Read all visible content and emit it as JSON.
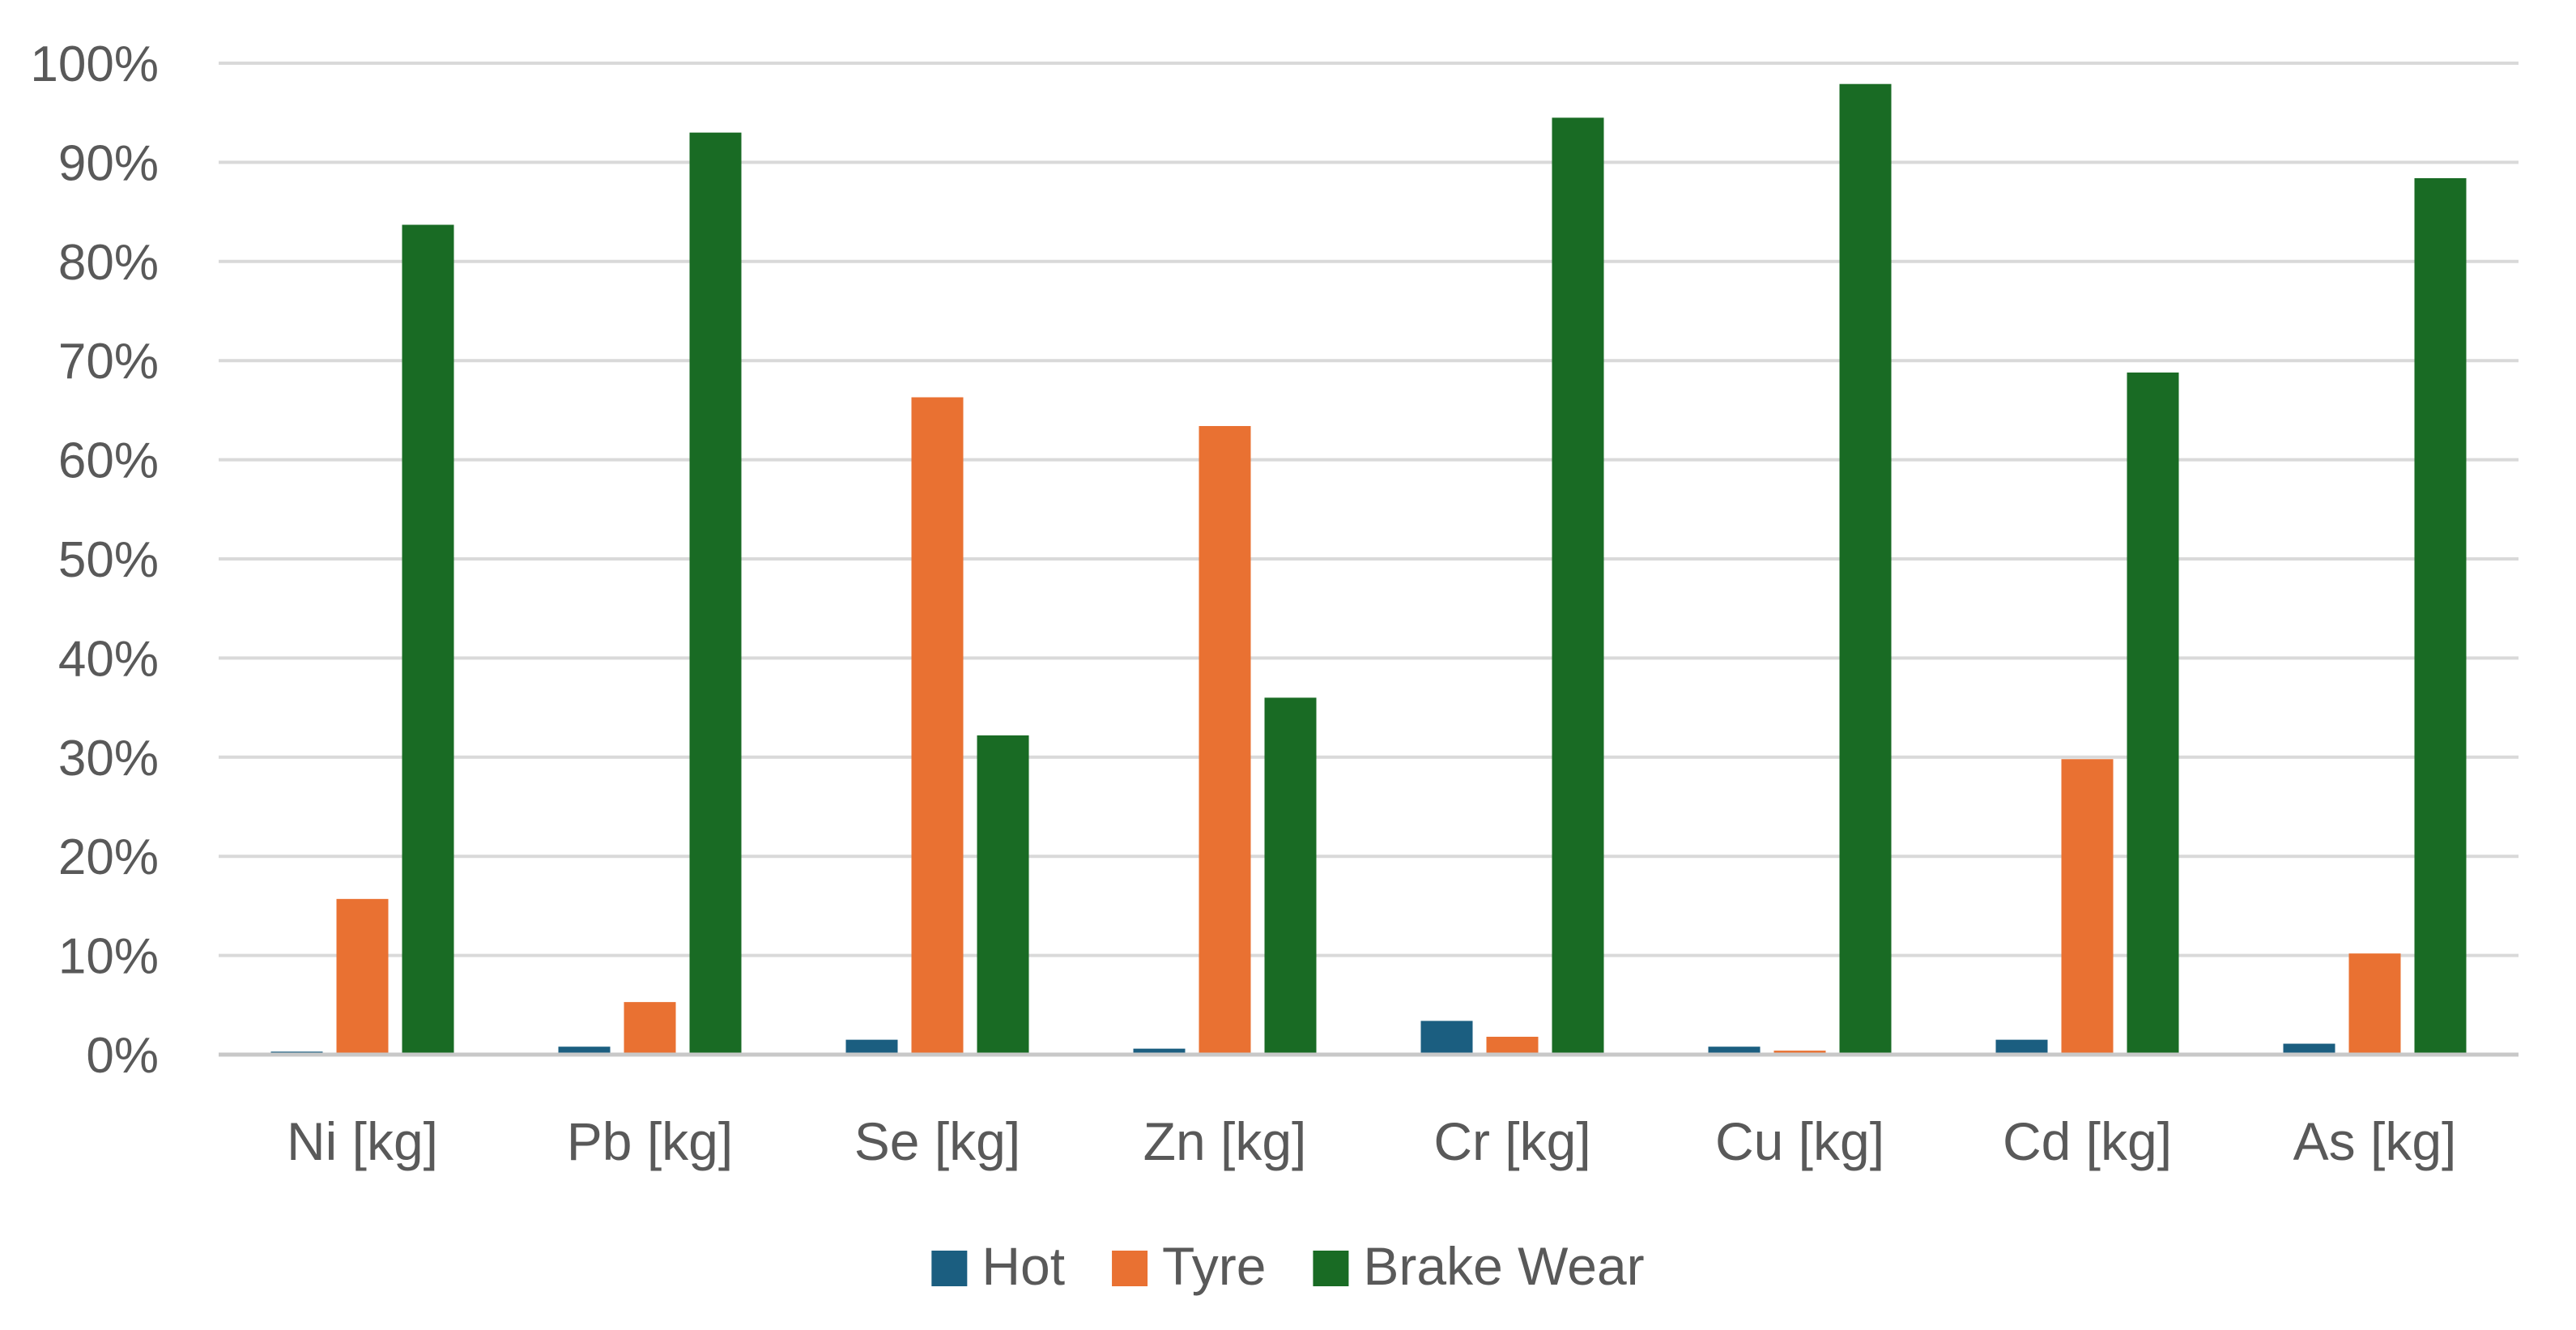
{
  "chart_data": {
    "type": "bar",
    "categories": [
      "Ni [kg]",
      "Pb [kg]",
      "Se [kg]",
      "Zn [kg]",
      "Cr [kg]",
      "Cu [kg]",
      "Cd [kg]",
      "As [kg]"
    ],
    "series": [
      {
        "name": "Hot",
        "color": "#1b5e80",
        "values": [
          0.3,
          0.8,
          1.5,
          0.6,
          3.4,
          0.8,
          1.5,
          1.1
        ]
      },
      {
        "name": "Tyre",
        "color": "#e97132",
        "values": [
          15.7,
          5.3,
          66.3,
          63.4,
          1.8,
          0.4,
          29.8,
          10.2
        ]
      },
      {
        "name": "Brake Wear",
        "color": "#196b24",
        "values": [
          83.7,
          93.0,
          32.2,
          36.0,
          94.5,
          97.9,
          68.8,
          88.4
        ]
      }
    ],
    "yticks": [
      "0%",
      "10%",
      "20%",
      "30%",
      "40%",
      "50%",
      "60%",
      "70%",
      "80%",
      "90%",
      "100%"
    ],
    "ylim": [
      0,
      100
    ],
    "grid": true,
    "legend_position": "bottom",
    "title": "",
    "xlabel": "",
    "ylabel": ""
  }
}
